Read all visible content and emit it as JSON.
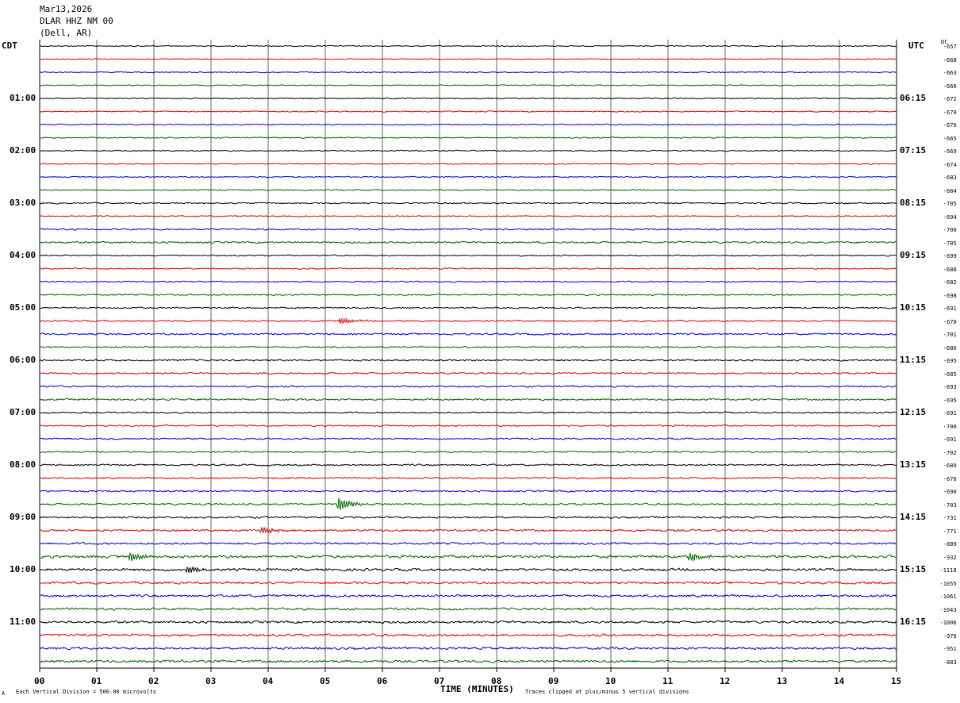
{
  "header": {
    "date": "Mar13,2026",
    "station": "DLAR HHZ NM 00",
    "location": "(Dell, AR)"
  },
  "left_zone": "CDT",
  "right_zone": "UTC",
  "dc_label": "DC",
  "footer": {
    "vertical_division": "Each Vertical Division =  500.00 microvolts",
    "xlabel": "TIME (MINUTES)",
    "clip_note": "Traces clipped at plus/minus 5 vertical divisions",
    "mark": "A"
  },
  "colors": {
    "trace_cycle": [
      "#000000",
      "#e00000",
      "#0000e0",
      "#006400"
    ],
    "grid": "#000000"
  },
  "chart_data": {
    "type": "line",
    "title": "Mar13,2026  DLAR HHZ NM 00  (Dell, AR)",
    "xlabel": "TIME (MINUTES)",
    "xlim": [
      0,
      15
    ],
    "x_ticks": [
      "00",
      "01",
      "02",
      "03",
      "04",
      "05",
      "06",
      "07",
      "08",
      "09",
      "10",
      "11",
      "12",
      "13",
      "14",
      "15"
    ],
    "rows_per_hour": 4,
    "row_count": 48,
    "left_time_labels": [
      {
        "row": 4,
        "label": "01:00"
      },
      {
        "row": 8,
        "label": "02:00"
      },
      {
        "row": 12,
        "label": "03:00"
      },
      {
        "row": 16,
        "label": "04:00"
      },
      {
        "row": 20,
        "label": "05:00"
      },
      {
        "row": 24,
        "label": "06:00"
      },
      {
        "row": 28,
        "label": "07:00"
      },
      {
        "row": 32,
        "label": "08:00"
      },
      {
        "row": 36,
        "label": "09:00"
      },
      {
        "row": 40,
        "label": "10:00"
      },
      {
        "row": 44,
        "label": "11:00"
      }
    ],
    "right_time_labels": [
      {
        "row": 4,
        "label": "06:15"
      },
      {
        "row": 8,
        "label": "07:15"
      },
      {
        "row": 12,
        "label": "08:15"
      },
      {
        "row": 16,
        "label": "09:15"
      },
      {
        "row": 20,
        "label": "10:15"
      },
      {
        "row": 24,
        "label": "11:15"
      },
      {
        "row": 28,
        "label": "12:15"
      },
      {
        "row": 32,
        "label": "13:15"
      },
      {
        "row": 36,
        "label": "14:15"
      },
      {
        "row": 40,
        "label": "15:15"
      },
      {
        "row": 44,
        "label": "16:15"
      }
    ],
    "dc_offsets": [
      "-657",
      "-668",
      "-663",
      "-666",
      "-672",
      "-670",
      "-676",
      "-665",
      "-669",
      "-674",
      "-683",
      "-684",
      "-705",
      "-694",
      "-700",
      "-705",
      "-699",
      "-688",
      "-682",
      "-698",
      "-691",
      "-678",
      "-701",
      "-686",
      "-695",
      "-685",
      "-693",
      "-695",
      "-691",
      "-700",
      "-691",
      "-702",
      "-689",
      "-676",
      "-690",
      "-703",
      "-731",
      "-771",
      "-809",
      "-932",
      "-1118",
      "-1055",
      "-1061",
      "-1043",
      "-1006",
      "-976",
      "-951",
      "-883"
    ],
    "trace_noise": [
      0.9,
      0.9,
      0.9,
      0.9,
      1.0,
      1.0,
      1.0,
      1.0,
      1.0,
      1.0,
      1.0,
      1.0,
      1.1,
      1.1,
      1.4,
      1.6,
      1.1,
      1.1,
      1.1,
      1.2,
      1.3,
      1.3,
      1.5,
      1.4,
      1.4,
      1.4,
      1.4,
      1.5,
      1.3,
      1.3,
      1.3,
      1.3,
      1.4,
      1.4,
      1.5,
      1.6,
      1.6,
      1.8,
      1.8,
      2.4,
      2.2,
      2.0,
      2.1,
      2.0,
      2.0,
      2.0,
      2.0,
      2.1
    ],
    "events": [
      {
        "row": 21,
        "minute": 5.3,
        "amplitude": 3
      },
      {
        "row": 35,
        "minute": 5.25,
        "amplitude": 8
      },
      {
        "row": 37,
        "minute": 3.9,
        "amplitude": 4
      },
      {
        "row": 39,
        "minute": 1.6,
        "amplitude": 5
      },
      {
        "row": 39,
        "minute": 11.4,
        "amplitude": 5
      },
      {
        "row": 40,
        "minute": 2.6,
        "amplitude": 4
      }
    ]
  }
}
